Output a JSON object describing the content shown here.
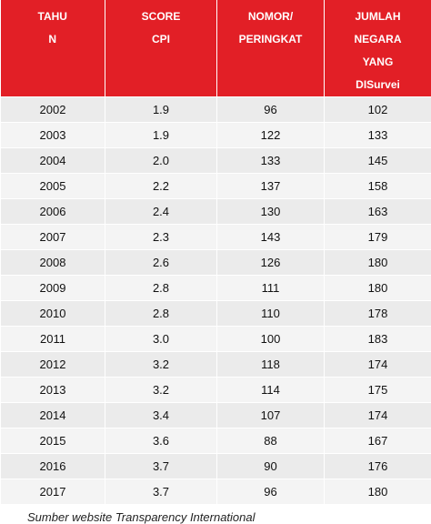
{
  "table": {
    "header": [
      [
        "TAHU",
        "N"
      ],
      [
        "SCORE",
        "CPI"
      ],
      [
        "NOMOR/",
        "PERINGKAT"
      ],
      [
        "JUMLAH",
        "NEGARA",
        "YANG",
        "DISurvei"
      ]
    ],
    "rows": [
      [
        "2002",
        "1.9",
        "96",
        "102"
      ],
      [
        "2003",
        "1.9",
        "122",
        "133"
      ],
      [
        "2004",
        "2.0",
        "133",
        "145"
      ],
      [
        "2005",
        "2.2",
        "137",
        "158"
      ],
      [
        "2006",
        "2.4",
        "130",
        "163"
      ],
      [
        "2007",
        "2.3",
        "143",
        "179"
      ],
      [
        "2008",
        "2.6",
        "126",
        "180"
      ],
      [
        "2009",
        "2.8",
        "111",
        "180"
      ],
      [
        "2010",
        "2.8",
        "110",
        "178"
      ],
      [
        "2011",
        "3.0",
        "100",
        "183"
      ],
      [
        "2012",
        "3.2",
        "118",
        "174"
      ],
      [
        "2013",
        "3.2",
        "114",
        "175"
      ],
      [
        "2014",
        "3.4",
        "107",
        "174"
      ],
      [
        "2015",
        "3.6",
        "88",
        "167"
      ],
      [
        "2016",
        "3.7",
        "90",
        "176"
      ],
      [
        "2017",
        "3.7",
        "96",
        "180"
      ]
    ]
  },
  "caption": "Sumber website Transparency International"
}
